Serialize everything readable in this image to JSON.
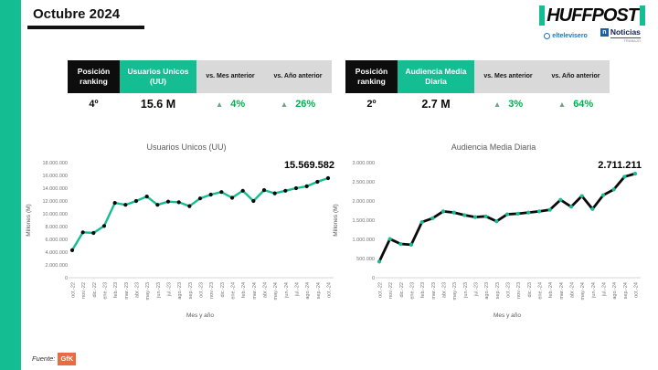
{
  "slide_title": "Octubre 2024",
  "brand": {
    "logo": "HUFFPOST",
    "partner1": "eltelevisero",
    "partner2": "Noticias",
    "partner2_sub": "TRABAJO"
  },
  "footer": {
    "source_label": "Fuente:",
    "source_name": "GfK"
  },
  "colors": {
    "accent_teal": "#14bd92",
    "positive_green": "#00b050",
    "triangle_green": "#6fa287",
    "header_black": "#0d0d0d",
    "header_gray": "#d9d9d9",
    "gfk_orange": "#eb6a41",
    "partner_blue": "#1b75bb"
  },
  "tables": [
    {
      "headers": [
        "Posición ranking",
        "Usuarios Unicos (UU)",
        "vs. Mes anterior",
        "vs. Año anterior"
      ],
      "rank": "4º",
      "value": "15.6 M",
      "mom_arrow": "▲",
      "mom": "4%",
      "yoy_arrow": "▲",
      "yoy": "26%"
    },
    {
      "headers": [
        "Posición ranking",
        "Audiencia Media Diaria",
        "vs. Mes anterior",
        "vs. Año anterior"
      ],
      "rank": "2º",
      "value": "2.7 M",
      "mom_arrow": "▲",
      "mom": "3%",
      "yoy_arrow": "▲",
      "yoy": "64%"
    }
  ],
  "chart_data": [
    {
      "type": "line",
      "title": "Usuarios Unicos (UU)",
      "end_label": "15.569.582",
      "xlabel": "Mes y año",
      "ylabel": "Millones (M)",
      "ylim": [
        0,
        18000000
      ],
      "yticks": [
        "18.000.000",
        "16.000.000",
        "14.000.000",
        "12.000.000",
        "10.000.000",
        "8.000.000",
        "6.000.000",
        "4.000.000",
        "2.000.000",
        "0"
      ],
      "x": [
        "oct.-22",
        "nov.-22",
        "dic.-22",
        "ene.-23",
        "feb.-23",
        "mar.-23",
        "abr.-23",
        "may.-23",
        "jun.-23",
        "jul.-23",
        "ago.-23",
        "sep.-23",
        "oct.-23",
        "nov.-23",
        "dic.-23",
        "ene.-24",
        "feb.-24",
        "mar.-24",
        "abr.-24",
        "may.-24",
        "jun.-24",
        "jul.-24",
        "ago.-24",
        "sep.-24",
        "oct.-24"
      ],
      "values": [
        4300000,
        7100000,
        7000000,
        8100000,
        11700000,
        11400000,
        12000000,
        12700000,
        11400000,
        11900000,
        11800000,
        11200000,
        12400000,
        13000000,
        13400000,
        12500000,
        13600000,
        12000000,
        13700000,
        13200000,
        13600000,
        14000000,
        14300000,
        15000000,
        15569582
      ],
      "legend": false,
      "grid": false,
      "line_color": "#14bd92",
      "marker_color": "#0a0a0a",
      "line_width": 2.4
    },
    {
      "type": "line",
      "title": "Audiencia Media Diaria",
      "end_label": "2.711.211",
      "xlabel": "Mes y año",
      "ylabel": "Millones (M)",
      "ylim": [
        0,
        3000000
      ],
      "yticks": [
        "3.000.000",
        "2.500.000",
        "2.000.000",
        "1.500.000",
        "1.000.000",
        "500.000",
        "0"
      ],
      "x": [
        "oct.-22",
        "nov.-22",
        "dic.-22",
        "ene.-23",
        "feb.-23",
        "mar.-23",
        "abr.-23",
        "may.-23",
        "jun.-23",
        "jul.-23",
        "ago.-23",
        "sep.-23",
        "oct.-23",
        "nov.-23",
        "dic.-23",
        "ene.-24",
        "feb.-24",
        "mar.-24",
        "abr.-24",
        "may.-24",
        "jun.-24",
        "jul.-24",
        "ago.-24",
        "sep.-24",
        "oct.-24"
      ],
      "values": [
        420000,
        1010000,
        880000,
        860000,
        1450000,
        1550000,
        1730000,
        1700000,
        1630000,
        1580000,
        1600000,
        1470000,
        1653000,
        1670000,
        1700000,
        1730000,
        1770000,
        2030000,
        1850000,
        2130000,
        1790000,
        2150000,
        2300000,
        2632000,
        2711211
      ],
      "legend": false,
      "grid": false,
      "line_color": "#0a0a0a",
      "marker_color": "#14bd92",
      "line_width": 2.8
    }
  ]
}
